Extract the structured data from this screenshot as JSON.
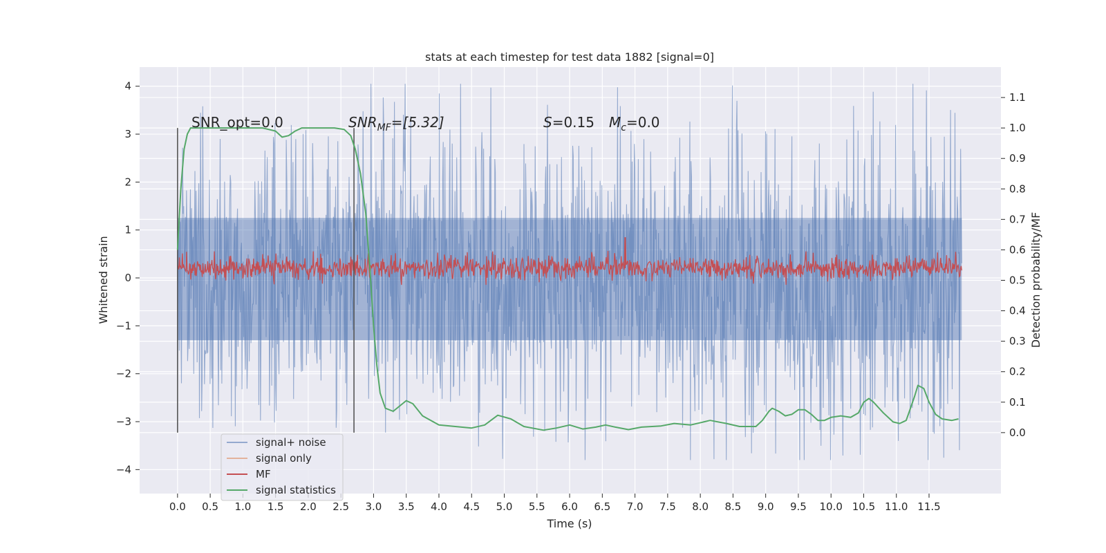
{
  "chart_data": {
    "type": "line",
    "title": "stats at each timestep for test data 1882 [signal=0]",
    "xlabel": "Time (s)",
    "ylabel_left": "Whitened strain",
    "ylabel_right": "Detection probability/MF",
    "xlim": [
      -0.58,
      12.6
    ],
    "ylim_left": [
      -4.5,
      4.4
    ],
    "ylim_right": [
      -0.2,
      1.2
    ],
    "x_ticks": [
      "0.0",
      "0.5",
      "1.0",
      "1.5",
      "2.0",
      "2.5",
      "3.0",
      "3.5",
      "4.0",
      "4.5",
      "5.0",
      "5.5",
      "6.0",
      "6.5",
      "7.0",
      "7.5",
      "8.0",
      "8.5",
      "9.0",
      "9.5",
      "10.0",
      "10.5",
      "11.0",
      "11.5"
    ],
    "y_left_ticks": [
      "4",
      "3",
      "2",
      "1",
      "0",
      "−1",
      "−2",
      "−3",
      "−4"
    ],
    "y_right_ticks": [
      "1.1",
      "1.0",
      "0.9",
      "0.8",
      "0.7",
      "0.6",
      "0.5",
      "0.4",
      "0.3",
      "0.2",
      "0.1",
      "0.0"
    ],
    "grid": true,
    "legend_position": "lower-left",
    "background": "#eaeaf2",
    "annotations": {
      "snr_opt": "SNR_opt=0.0",
      "snr_mf_main": "SNR",
      "snr_mf_sub": "MF",
      "snr_mf_value": "=[5.32]",
      "s_symbol": "S",
      "s_value": "=0.15",
      "mc_symbol": "M",
      "mc_sub": "c",
      "mc_value": "=0.0"
    },
    "vertical_markers_x": [
      0.0,
      2.7
    ],
    "series": [
      {
        "name": "signal+ noise",
        "color": "#4c72b0",
        "axis": "left",
        "x_range": [
          0.0,
          12.0
        ],
        "typical_range": [
          -2.0,
          2.0
        ],
        "extremes": [
          -3.8,
          4.05
        ]
      },
      {
        "name": "signal only",
        "color": "#dd8452",
        "axis": "left",
        "values_note": ""
      },
      {
        "name": "MF",
        "color": "#c44e52",
        "axis": "right",
        "x_range": [
          0.0,
          12.0
        ],
        "typical_range": [
          0.5,
          0.58
        ],
        "peak": {
          "x": 6.85,
          "y": 0.64
        }
      },
      {
        "name": "signal statistics",
        "color": "#55a868",
        "axis": "right",
        "points": [
          [
            0.0,
            0.6
          ],
          [
            0.05,
            0.8
          ],
          [
            0.1,
            0.93
          ],
          [
            0.15,
            0.98
          ],
          [
            0.2,
            1.0
          ],
          [
            0.5,
            1.0
          ],
          [
            1.0,
            1.0
          ],
          [
            1.3,
            1.0
          ],
          [
            1.5,
            0.99
          ],
          [
            1.6,
            0.97
          ],
          [
            1.7,
            0.975
          ],
          [
            1.8,
            0.99
          ],
          [
            1.9,
            1.0
          ],
          [
            2.2,
            1.0
          ],
          [
            2.4,
            1.0
          ],
          [
            2.55,
            0.995
          ],
          [
            2.65,
            0.975
          ],
          [
            2.72,
            0.93
          ],
          [
            2.8,
            0.85
          ],
          [
            2.88,
            0.72
          ],
          [
            2.95,
            0.52
          ],
          [
            3.0,
            0.35
          ],
          [
            3.05,
            0.22
          ],
          [
            3.1,
            0.13
          ],
          [
            3.18,
            0.08
          ],
          [
            3.3,
            0.07
          ],
          [
            3.5,
            0.105
          ],
          [
            3.6,
            0.095
          ],
          [
            3.75,
            0.055
          ],
          [
            4.0,
            0.025
          ],
          [
            4.5,
            0.015
          ],
          [
            4.7,
            0.025
          ],
          [
            4.9,
            0.057
          ],
          [
            5.1,
            0.045
          ],
          [
            5.3,
            0.02
          ],
          [
            5.6,
            0.008
          ],
          [
            5.8,
            0.015
          ],
          [
            6.0,
            0.025
          ],
          [
            6.2,
            0.012
          ],
          [
            6.4,
            0.018
          ],
          [
            6.55,
            0.025
          ],
          [
            6.7,
            0.018
          ],
          [
            6.9,
            0.01
          ],
          [
            7.1,
            0.018
          ],
          [
            7.4,
            0.022
          ],
          [
            7.6,
            0.03
          ],
          [
            7.85,
            0.025
          ],
          [
            8.15,
            0.04
          ],
          [
            8.4,
            0.03
          ],
          [
            8.6,
            0.02
          ],
          [
            8.85,
            0.02
          ],
          [
            8.95,
            0.04
          ],
          [
            9.05,
            0.07
          ],
          [
            9.1,
            0.08
          ],
          [
            9.2,
            0.07
          ],
          [
            9.3,
            0.055
          ],
          [
            9.4,
            0.06
          ],
          [
            9.5,
            0.075
          ],
          [
            9.6,
            0.075
          ],
          [
            9.7,
            0.06
          ],
          [
            9.8,
            0.04
          ],
          [
            9.9,
            0.04
          ],
          [
            10.0,
            0.05
          ],
          [
            10.15,
            0.055
          ],
          [
            10.3,
            0.05
          ],
          [
            10.42,
            0.065
          ],
          [
            10.5,
            0.1
          ],
          [
            10.58,
            0.112
          ],
          [
            10.65,
            0.1
          ],
          [
            10.8,
            0.065
          ],
          [
            10.95,
            0.035
          ],
          [
            11.05,
            0.03
          ],
          [
            11.15,
            0.04
          ],
          [
            11.2,
            0.07
          ],
          [
            11.28,
            0.12
          ],
          [
            11.33,
            0.155
          ],
          [
            11.42,
            0.145
          ],
          [
            11.5,
            0.1
          ],
          [
            11.6,
            0.06
          ],
          [
            11.7,
            0.045
          ],
          [
            11.85,
            0.04
          ],
          [
            11.95,
            0.045
          ]
        ]
      }
    ]
  }
}
